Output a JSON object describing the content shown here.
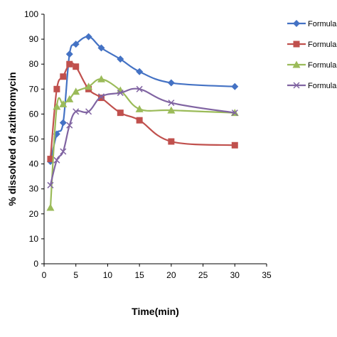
{
  "chart_data": {
    "type": "line",
    "title": "",
    "xlabel": "Time(min)",
    "ylabel": "% dissolved of azithromycin",
    "xlim": [
      0,
      35
    ],
    "ylim": [
      0,
      100
    ],
    "x_ticks": [
      "0",
      "5",
      "10",
      "15",
      "20",
      "25",
      "30",
      "35"
    ],
    "y_ticks": [
      "0",
      "10",
      "20",
      "30",
      "40",
      "50",
      "60",
      "70",
      "80",
      "90",
      "100"
    ],
    "grid": false,
    "legend_position": "right",
    "x": [
      1,
      2,
      3,
      4,
      5,
      7,
      9,
      12,
      15,
      20,
      30
    ],
    "series": [
      {
        "name": "Formula H",
        "color": "#4472C4",
        "marker": "diamond",
        "values": [
          41,
          52,
          56.5,
          84,
          88,
          91,
          86.5,
          82,
          77,
          72.5,
          71
        ]
      },
      {
        "name": "Formula C",
        "color": "#C0504D",
        "marker": "square",
        "values": [
          42,
          70,
          75,
          80,
          79,
          70,
          66.5,
          60.5,
          57.5,
          49,
          47.5
        ]
      },
      {
        "name": "Formula E",
        "color": "#9BBB59",
        "marker": "triangle",
        "values": [
          22.5,
          63,
          64,
          66,
          69,
          71,
          74,
          69.5,
          62,
          61.5,
          60.5
        ]
      },
      {
        "name": "Formula F",
        "color": "#8064A2",
        "marker": "x",
        "values": [
          31.5,
          41.5,
          45,
          55.5,
          61,
          61,
          67,
          68.5,
          70,
          64.5,
          60.5
        ]
      }
    ]
  }
}
